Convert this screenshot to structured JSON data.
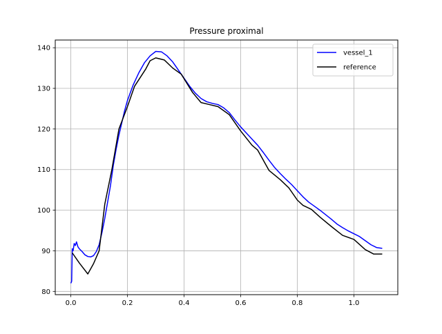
{
  "chart_data": {
    "type": "line",
    "title": "Pressure proximal",
    "xlabel": "",
    "ylabel": "",
    "xlim": [
      -0.055,
      1.155
    ],
    "ylim": [
      79.2,
      141.9
    ],
    "xticks": [
      0.0,
      0.2,
      0.4,
      0.6,
      0.8,
      1.0
    ],
    "xtick_labels": [
      "0.0",
      "0.2",
      "0.4",
      "0.6",
      "0.8",
      "1.0"
    ],
    "yticks": [
      80,
      90,
      100,
      110,
      120,
      130,
      140
    ],
    "ytick_labels": [
      "80",
      "90",
      "100",
      "110",
      "120",
      "130",
      "140"
    ],
    "grid": true,
    "legend_position": "upper right",
    "series": [
      {
        "name": "vessel_1",
        "color": "#0000ff",
        "points": [
          [
            0.0,
            82.0
          ],
          [
            0.003,
            82.5
          ],
          [
            0.005,
            90.5
          ],
          [
            0.008,
            90.0
          ],
          [
            0.012,
            91.8
          ],
          [
            0.016,
            91.3
          ],
          [
            0.02,
            92.2
          ],
          [
            0.025,
            91.0
          ],
          [
            0.03,
            90.5
          ],
          [
            0.04,
            89.8
          ],
          [
            0.05,
            89.0
          ],
          [
            0.06,
            88.6
          ],
          [
            0.07,
            88.5
          ],
          [
            0.08,
            88.8
          ],
          [
            0.09,
            89.8
          ],
          [
            0.1,
            91.5
          ],
          [
            0.11,
            94.5
          ],
          [
            0.12,
            98.0
          ],
          [
            0.13,
            102.0
          ],
          [
            0.14,
            106.0
          ],
          [
            0.15,
            111.0
          ],
          [
            0.16,
            115.0
          ],
          [
            0.17,
            118.5
          ],
          [
            0.18,
            121.5
          ],
          [
            0.19,
            124.5
          ],
          [
            0.2,
            127.0
          ],
          [
            0.22,
            130.8
          ],
          [
            0.24,
            133.8
          ],
          [
            0.26,
            136.3
          ],
          [
            0.28,
            138.0
          ],
          [
            0.3,
            139.1
          ],
          [
            0.32,
            139.0
          ],
          [
            0.34,
            138.0
          ],
          [
            0.36,
            136.5
          ],
          [
            0.38,
            134.5
          ],
          [
            0.4,
            132.5
          ],
          [
            0.42,
            130.5
          ],
          [
            0.44,
            128.8
          ],
          [
            0.46,
            127.5
          ],
          [
            0.48,
            126.7
          ],
          [
            0.5,
            126.3
          ],
          [
            0.52,
            126.0
          ],
          [
            0.54,
            125.2
          ],
          [
            0.56,
            124.0
          ],
          [
            0.58,
            122.2
          ],
          [
            0.6,
            120.5
          ],
          [
            0.62,
            119.0
          ],
          [
            0.64,
            117.5
          ],
          [
            0.66,
            116.0
          ],
          [
            0.68,
            114.2
          ],
          [
            0.7,
            112.3
          ],
          [
            0.72,
            110.5
          ],
          [
            0.74,
            109.0
          ],
          [
            0.76,
            107.6
          ],
          [
            0.78,
            106.3
          ],
          [
            0.8,
            104.8
          ],
          [
            0.82,
            103.3
          ],
          [
            0.84,
            102.0
          ],
          [
            0.86,
            101.0
          ],
          [
            0.88,
            100.0
          ],
          [
            0.9,
            98.9
          ],
          [
            0.92,
            97.8
          ],
          [
            0.94,
            96.6
          ],
          [
            0.96,
            95.7
          ],
          [
            0.98,
            94.9
          ],
          [
            1.0,
            94.2
          ],
          [
            1.02,
            93.5
          ],
          [
            1.04,
            92.5
          ],
          [
            1.06,
            91.5
          ],
          [
            1.08,
            90.8
          ],
          [
            1.1,
            90.6
          ]
        ]
      },
      {
        "name": "reference",
        "color": "#000000",
        "points": [
          [
            0.005,
            89.5
          ],
          [
            0.03,
            87.0
          ],
          [
            0.06,
            84.3
          ],
          [
            0.08,
            86.8
          ],
          [
            0.1,
            90.0
          ],
          [
            0.12,
            101.5
          ],
          [
            0.145,
            110.0
          ],
          [
            0.17,
            120.0
          ],
          [
            0.2,
            125.5
          ],
          [
            0.225,
            130.5
          ],
          [
            0.265,
            134.8
          ],
          [
            0.28,
            136.8
          ],
          [
            0.3,
            137.5
          ],
          [
            0.33,
            137.0
          ],
          [
            0.36,
            135.0
          ],
          [
            0.39,
            133.5
          ],
          [
            0.43,
            129.0
          ],
          [
            0.46,
            126.5
          ],
          [
            0.49,
            126.0
          ],
          [
            0.52,
            125.5
          ],
          [
            0.56,
            123.5
          ],
          [
            0.6,
            119.5
          ],
          [
            0.64,
            116.0
          ],
          [
            0.66,
            114.8
          ],
          [
            0.7,
            109.8
          ],
          [
            0.74,
            107.5
          ],
          [
            0.77,
            105.5
          ],
          [
            0.8,
            102.5
          ],
          [
            0.82,
            101.2
          ],
          [
            0.85,
            100.2
          ],
          [
            0.88,
            98.3
          ],
          [
            0.92,
            96.0
          ],
          [
            0.96,
            93.8
          ],
          [
            1.0,
            92.8
          ],
          [
            1.04,
            90.3
          ],
          [
            1.07,
            89.2
          ],
          [
            1.1,
            89.2
          ]
        ]
      }
    ]
  }
}
